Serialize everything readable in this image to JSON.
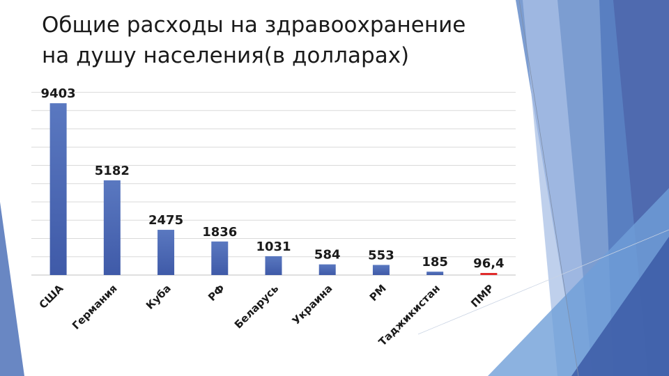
{
  "slide": {
    "title_line1": "Общие расходы на здравоохранение",
    "title_line2": "на душу населения(в долларах)"
  },
  "colors": {
    "bar": "#4a64ad",
    "bar_highlight": "#e02b2b",
    "gridline": "#d9d9d9",
    "decor_dark": "#3c5aa6",
    "decor_mid": "#5b85c6",
    "decor_light": "#a9c0e6"
  },
  "chart_data": {
    "type": "bar",
    "categories": [
      "США",
      "Германия",
      "Куба",
      "РФ",
      "Беларусь",
      "Украина",
      "РМ",
      "Таджикистан",
      "ПМР"
    ],
    "values": [
      9403,
      5182,
      2475,
      1836,
      1031,
      584,
      553,
      185,
      96.4
    ],
    "data_labels": [
      "9403",
      "5182",
      "2475",
      "1836",
      "1031",
      "584",
      "553",
      "185",
      "96,4"
    ],
    "highlight_index": 8,
    "ylim": [
      0,
      10000
    ],
    "grid": true,
    "legend": "none"
  }
}
